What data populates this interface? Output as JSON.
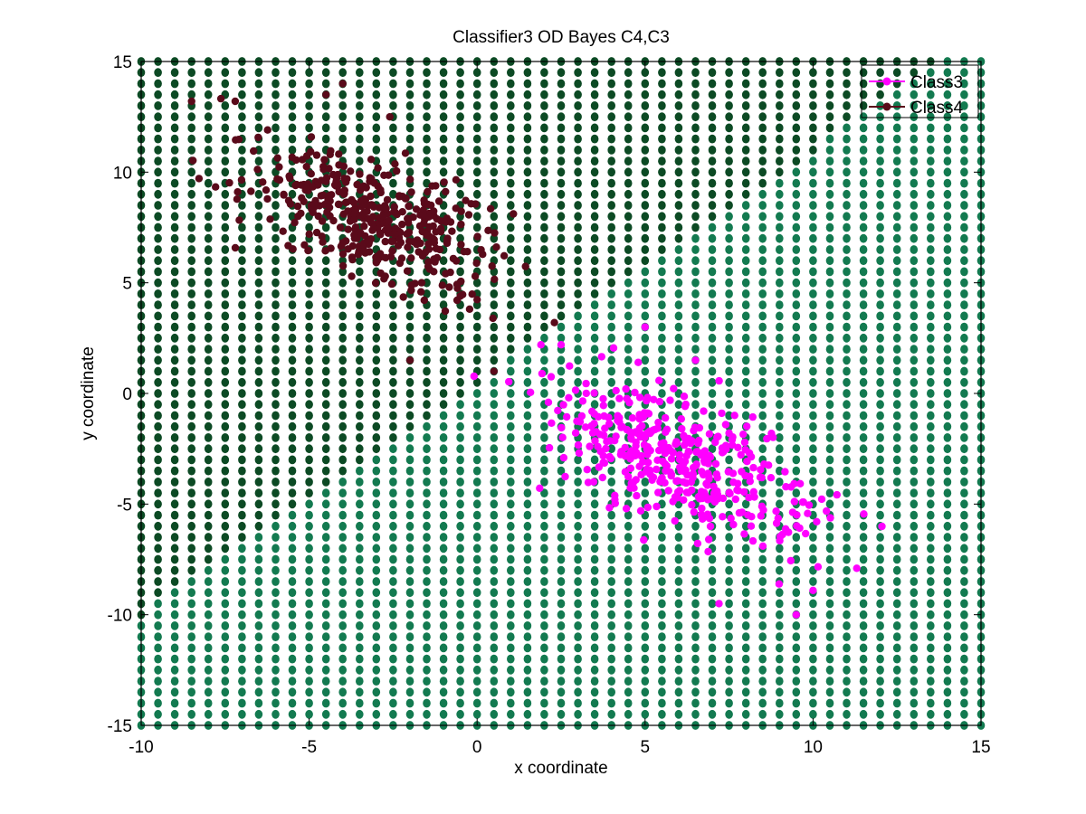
{
  "chart_data": {
    "type": "scatter",
    "title": "Classifier3 OD Bayes C4,C3",
    "xlabel": "x coordinate",
    "ylabel": "y coordinate",
    "xlim": [
      -10,
      15
    ],
    "ylim": [
      -15,
      15
    ],
    "xticks": [
      -10,
      -5,
      0,
      5,
      10,
      15
    ],
    "yticks": [
      -15,
      -10,
      -5,
      0,
      5,
      10,
      15
    ],
    "xtick_labels": [
      "-10",
      "-5",
      "0",
      "5",
      "10",
      "15"
    ],
    "ytick_labels": [
      "-15",
      "-10",
      "-5",
      "0",
      "5",
      "10",
      "15"
    ],
    "grid": false,
    "legend_position": "top-right",
    "legend": [
      "Class3",
      "Class4"
    ],
    "decision_region": {
      "grid_step": 0.5,
      "description_colors": {
        "class4_region": "#0c4a24",
        "class3_region": "#137a50"
      },
      "boundary": {
        "kind": "line",
        "slope": 1.05,
        "intercept": 0.5
      }
    },
    "series": [
      {
        "name": "Class3",
        "color": "#ff00ff",
        "marker": "filled-circle",
        "mean": [
          6.0,
          -3.0
        ],
        "spread_along": 2.3,
        "spread_across": 1.2,
        "axis_angle_deg": -40,
        "count": 400,
        "outliers": [
          [
            5,
            3
          ],
          [
            2.5,
            2.2
          ],
          [
            11.3,
            -7.9
          ],
          [
            7.2,
            -9.5
          ],
          [
            9.5,
            -10
          ],
          [
            10,
            -8.9
          ],
          [
            1.9,
            2.2
          ],
          [
            6.5,
            1.5
          ]
        ]
      },
      {
        "name": "Class4",
        "color": "#5a0a1a",
        "marker": "filled-circle",
        "mean": [
          -3.0,
          8.0
        ],
        "spread_along": 2.2,
        "spread_across": 1.1,
        "axis_angle_deg": -40,
        "count": 400,
        "outliers": [
          [
            -8.5,
            13.2
          ],
          [
            -7.2,
            13.2
          ],
          [
            -4.0,
            14.0
          ],
          [
            -2.6,
            12.5
          ],
          [
            0.5,
            1.0
          ],
          [
            2.3,
            3.2
          ],
          [
            -2.0,
            1.5
          ],
          [
            -4.5,
            13.5
          ]
        ]
      }
    ]
  },
  "colors": {
    "class4_region": "#0c4a24",
    "class3_region": "#137a50",
    "class3": "#ff00ff",
    "class4": "#5a0a1a"
  }
}
